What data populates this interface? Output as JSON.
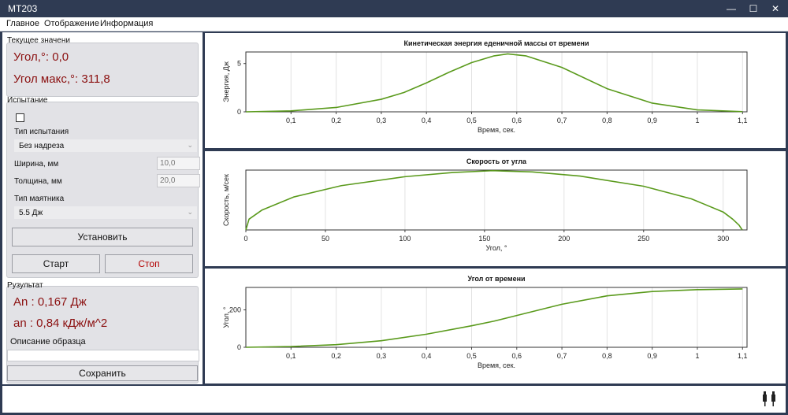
{
  "window": {
    "title": "MT203",
    "minimize": "—",
    "maximize": "☐",
    "close": "✕"
  },
  "menu": {
    "items": [
      "Главное",
      "Отображение",
      "Информация"
    ]
  },
  "current": {
    "title": "Текущее значени",
    "angle": "Угол,°: 0,0",
    "angle_max": "Угол макс,°: 311,8"
  },
  "test": {
    "title": "Испытание",
    "test_type_label": "Тип испытания",
    "test_type_value": "Без надреза",
    "width_label": "Ширина, мм",
    "width_value": "10,0",
    "thickness_label": "Толщина, мм",
    "thickness_value": "20,0",
    "pendulum_label": "Тип маятника",
    "pendulum_value": "5.5 Дж",
    "set_button": "Установить",
    "start_button": "Старт",
    "stop_button": "Стоп"
  },
  "result": {
    "title": "Рузультат",
    "an_upper": "An  : 0,167 Дж",
    "an_lower": "an  : 0,84 кДж/м^2",
    "description_label": "Описание  образца",
    "save_button": "Сохранить"
  },
  "chart_data": [
    {
      "type": "line",
      "title": "Кинетическая энергия еденичной массы от времени",
      "xlabel": "Время, сек.",
      "ylabel": "Энергия, Дж",
      "xlim": [
        0.0,
        1.11
      ],
      "ylim": [
        0,
        6.2
      ],
      "xticks": [
        "0,1",
        "0,2",
        "0,3",
        "0,4",
        "0,5",
        "0,6",
        "0,7",
        "0,8",
        "0,9",
        "1",
        "1,1"
      ],
      "xtick_values": [
        0.1,
        0.2,
        0.3,
        0.4,
        0.5,
        0.6,
        0.7,
        0.8,
        0.9,
        1.0,
        1.1
      ],
      "yticks": [
        "0",
        "5"
      ],
      "ytick_values": [
        0,
        5
      ],
      "grid": true,
      "color": "#5a9a1c",
      "x": [
        0.0,
        0.1,
        0.2,
        0.3,
        0.35,
        0.4,
        0.45,
        0.5,
        0.55,
        0.58,
        0.62,
        0.7,
        0.8,
        0.9,
        1.0,
        1.1
      ],
      "y": [
        0.0,
        0.1,
        0.45,
        1.3,
        2.0,
        3.0,
        4.1,
        5.1,
        5.8,
        6.0,
        5.8,
        4.6,
        2.4,
        0.9,
        0.2,
        0.02
      ]
    },
    {
      "type": "line",
      "title": "Скорость от угла",
      "xlabel": "Угол, °",
      "ylabel": "Скорость, м/сек",
      "xlim": [
        0,
        315
      ],
      "ylim": [
        0,
        1.0
      ],
      "xticks": [
        "0",
        "50",
        "100",
        "150",
        "200",
        "250",
        "300"
      ],
      "xtick_values": [
        0,
        50,
        100,
        150,
        200,
        250,
        300
      ],
      "yticks": [],
      "grid": true,
      "color": "#5a9a1c",
      "x": [
        0,
        2,
        10,
        30,
        60,
        100,
        130,
        155,
        180,
        210,
        250,
        280,
        300,
        306,
        310,
        312
      ],
      "y": [
        0.0,
        0.18,
        0.33,
        0.55,
        0.74,
        0.89,
        0.96,
        0.99,
        0.97,
        0.9,
        0.73,
        0.52,
        0.3,
        0.18,
        0.08,
        0.0
      ]
    },
    {
      "type": "line",
      "title": "Угол от времени",
      "xlabel": "Время, сек.",
      "ylabel": "Угол, °",
      "xlim": [
        0.0,
        1.11
      ],
      "ylim": [
        0,
        320
      ],
      "xticks": [
        "0,1",
        "0,2",
        "0,3",
        "0,4",
        "0,5",
        "0,6",
        "0,7",
        "0,8",
        "0,9",
        "1",
        "1,1"
      ],
      "xtick_values": [
        0.1,
        0.2,
        0.3,
        0.4,
        0.5,
        0.6,
        0.7,
        0.8,
        0.9,
        1.0,
        1.1
      ],
      "yticks": [
        "0",
        "200"
      ],
      "ytick_values": [
        0,
        200
      ],
      "grid": true,
      "color": "#5a9a1c",
      "x": [
        0.0,
        0.1,
        0.2,
        0.3,
        0.4,
        0.5,
        0.55,
        0.6,
        0.7,
        0.8,
        0.9,
        1.0,
        1.1
      ],
      "y": [
        0,
        4,
        14,
        35,
        70,
        115,
        140,
        170,
        230,
        275,
        298,
        308,
        312
      ]
    }
  ]
}
